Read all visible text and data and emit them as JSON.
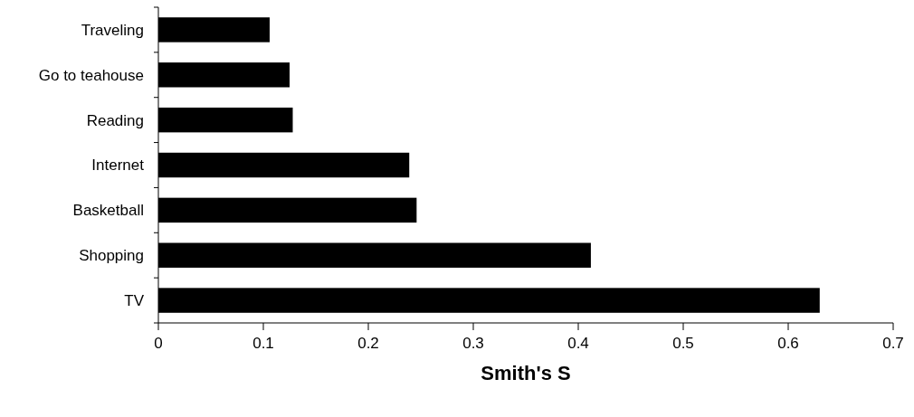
{
  "chart_data": {
    "type": "bar",
    "orientation": "horizontal",
    "categories": [
      "Traveling",
      "Go to teahouse",
      "Reading",
      "Internet",
      "Basketball",
      "Shopping",
      "TV"
    ],
    "values": [
      0.106,
      0.125,
      0.128,
      0.239,
      0.246,
      0.412,
      0.63
    ],
    "color": "#000000",
    "xlim": [
      0,
      0.7
    ],
    "xticks": [
      0,
      0.1,
      0.2,
      0.3,
      0.4,
      0.5,
      0.6,
      0.7
    ],
    "xlabel": "Smith's S",
    "grid": false
  }
}
